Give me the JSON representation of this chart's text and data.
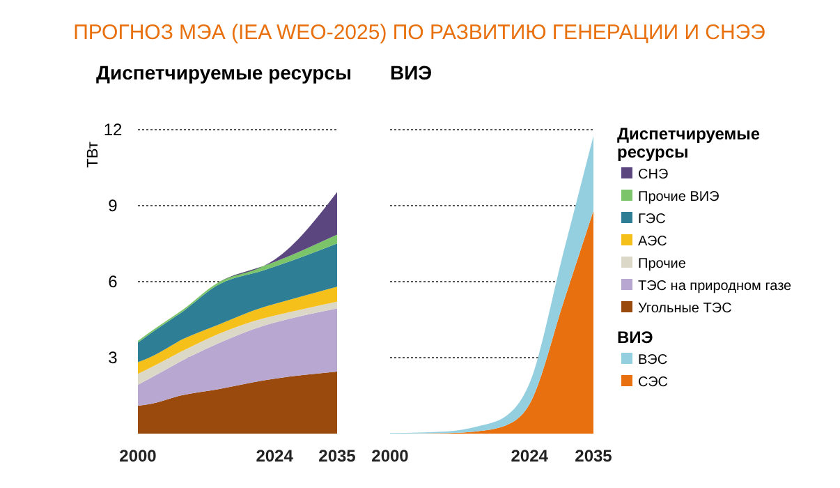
{
  "chart_data": [
    {
      "type": "area",
      "title": "ПРОГНОЗ МЭА (IEA WEO-2025) ПО РАЗВИТИЮ ГЕНЕРАЦИИ И СНЭЭ",
      "subtitle": "Диспетчируемые ресурсы",
      "ylabel": "ТВт",
      "legend_title": "Диспетчируемые ресурсы",
      "stacked": true,
      "grid": "y",
      "legend": "right",
      "x": [
        2000,
        2002,
        2008,
        2014,
        2022,
        2024,
        2035
      ],
      "xlim": [
        2000,
        2035
      ],
      "xticks": [
        2000,
        2024,
        2035
      ],
      "ylim": [
        0,
        12
      ],
      "yticks": [
        3,
        6,
        9,
        12
      ],
      "series": [
        {
          "name": "Угольные ТЭС",
          "color": "#9a4a0c",
          "values": [
            1.1,
            1.16,
            1.53,
            1.75,
            2.1,
            2.17,
            2.45
          ]
        },
        {
          "name": "ТЭС на природном газе",
          "color": "#b7a7d1",
          "values": [
            0.83,
            1.01,
            1.38,
            1.8,
            2.15,
            2.21,
            2.49
          ]
        },
        {
          "name": "Прочие",
          "color": "#dcd8c8",
          "values": [
            0.43,
            0.41,
            0.37,
            0.37,
            0.3,
            0.28,
            0.27
          ]
        },
        {
          "name": "АЭС",
          "color": "#f5c01a",
          "values": [
            0.46,
            0.42,
            0.46,
            0.37,
            0.44,
            0.46,
            0.59
          ]
        },
        {
          "name": "ГЭС",
          "color": "#2e7f95",
          "values": [
            0.77,
            0.92,
            1.1,
            1.57,
            1.45,
            1.47,
            1.71
          ]
        },
        {
          "name": "Прочие ВИЭ",
          "color": "#7cc46a",
          "values": [
            0.07,
            0.07,
            0.07,
            0.09,
            0.17,
            0.19,
            0.35
          ]
        },
        {
          "name": "СНЭ",
          "color": "#5b4680",
          "values": [
            0,
            0,
            0,
            0,
            0,
            0.09,
            1.68
          ]
        }
      ]
    },
    {
      "type": "area",
      "subtitle": "ВИЭ",
      "legend_title": "ВИЭ",
      "stacked": true,
      "grid": "y",
      "legend": "right",
      "tick_labels": "x",
      "x": [
        2000,
        2010,
        2015,
        2020,
        2024,
        2030,
        2035
      ],
      "xlim": [
        2000,
        2035
      ],
      "xticks": [
        2000,
        2024,
        2035
      ],
      "ylim": [
        0,
        12
      ],
      "yticks": [
        3,
        6,
        9,
        12
      ],
      "series": [
        {
          "name": "СЭС",
          "color": "#e8700e",
          "values": [
            0,
            0.02,
            0.09,
            0.33,
            1.16,
            5.3,
            8.8
          ]
        },
        {
          "name": "ВЭС",
          "color": "#94cfe0",
          "values": [
            0.02,
            0.07,
            0.19,
            0.37,
            0.83,
            2.0,
            2.95
          ]
        }
      ]
    }
  ]
}
